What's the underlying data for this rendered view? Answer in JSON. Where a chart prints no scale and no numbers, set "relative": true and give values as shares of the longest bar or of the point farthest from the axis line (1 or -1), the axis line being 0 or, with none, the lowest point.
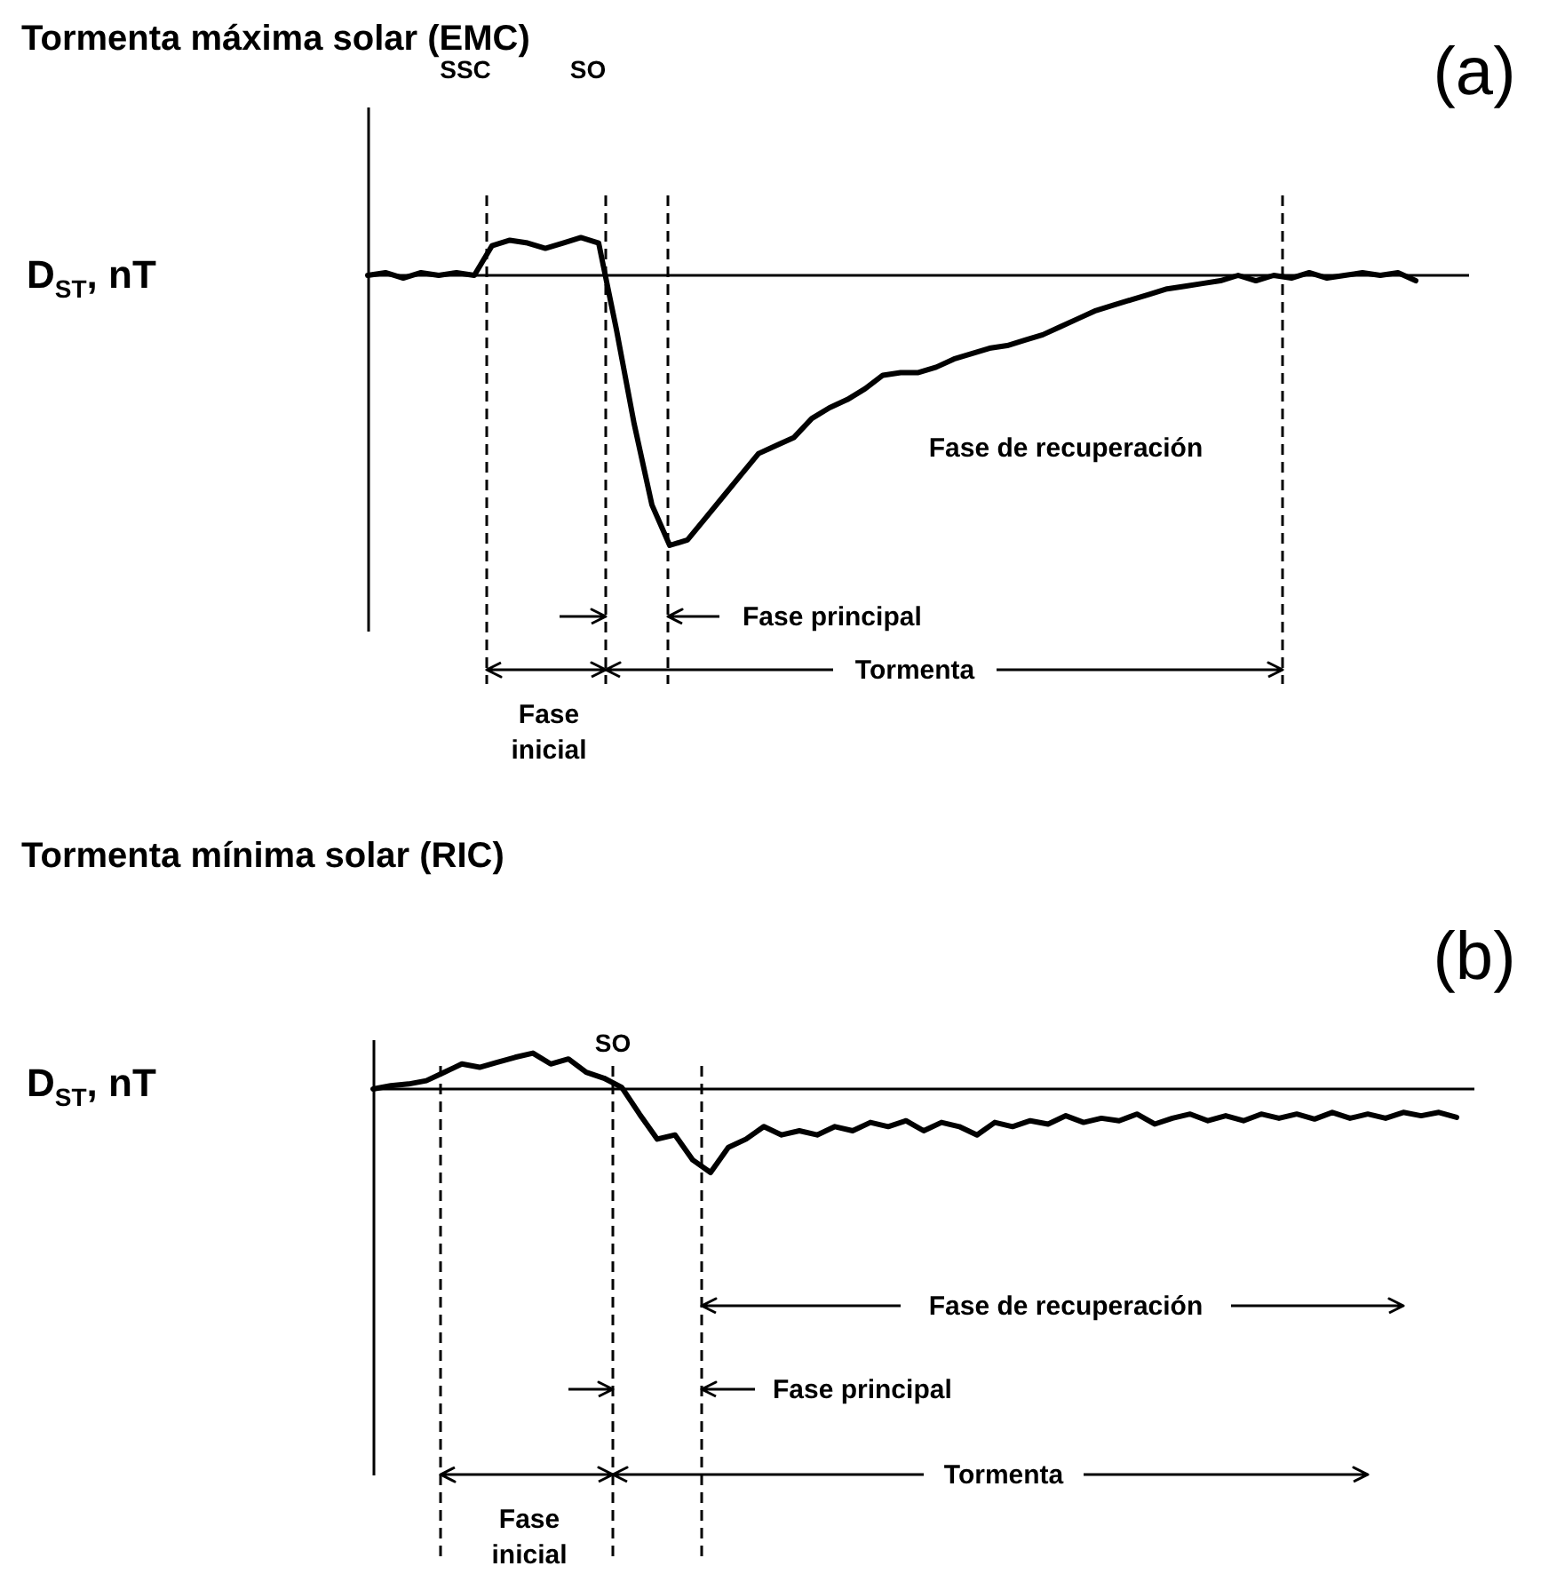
{
  "chart_data": [
    {
      "type": "line",
      "title": "Tormenta máxima solar (EMC)",
      "ylabel": "D$_{ST}$, nT",
      "relative": true,
      "categories": [
        null,
        null,
        null,
        null,
        null,
        null,
        null,
        null,
        null,
        null,
        null,
        null,
        null,
        null,
        null,
        null,
        null,
        null,
        null,
        null,
        null,
        null,
        null,
        null,
        null,
        null,
        null,
        null,
        null,
        null,
        null,
        null,
        null,
        null,
        null,
        null,
        null,
        null,
        null,
        null,
        null,
        null,
        null,
        null,
        null,
        null,
        null,
        null,
        null,
        null,
        null,
        null,
        null,
        null,
        null,
        null,
        null,
        null,
        null,
        null
      ],
      "series": [
        {
          "color": "#000000",
          "values": [
            0,
            0.01,
            -0.01,
            0.01,
            0,
            0.01,
            0,
            0.11,
            0.13,
            0.12,
            0.1,
            0.12,
            0.14,
            0.12,
            -0.2,
            -0.55,
            -0.85,
            -1.0,
            -0.98,
            -0.9,
            -0.82,
            -0.74,
            -0.66,
            -0.63,
            -0.6,
            -0.53,
            -0.49,
            -0.46,
            -0.42,
            -0.37,
            -0.36,
            -0.36,
            -0.34,
            -0.31,
            -0.29,
            -0.27,
            -0.26,
            -0.24,
            -0.22,
            -0.19,
            -0.16,
            -0.13,
            -0.11,
            -0.09,
            -0.07,
            -0.05,
            -0.04,
            -0.03,
            -0.02,
            0,
            -0.02,
            0,
            -0.01,
            0.01,
            -0.01,
            0,
            0.01,
            0,
            0.01,
            -0.02
          ]
        }
      ],
      "annotations": [
        "(a)",
        "SSC",
        "SO",
        "Fase de recuperación",
        "Fase principal",
        "Tormenta",
        "Fase inicial"
      ]
    },
    {
      "type": "line",
      "title": "Tormenta mínima solar (RIC)",
      "ylabel": "D$_{ST}$, nT",
      "relative": true,
      "categories": [
        null,
        null,
        null,
        null,
        null,
        null,
        null,
        null,
        null,
        null,
        null,
        null,
        null,
        null,
        null,
        null,
        null,
        null,
        null,
        null,
        null,
        null,
        null,
        null,
        null,
        null,
        null,
        null,
        null,
        null,
        null,
        null,
        null,
        null,
        null,
        null,
        null,
        null,
        null,
        null,
        null,
        null,
        null,
        null,
        null,
        null,
        null,
        null,
        null,
        null,
        null,
        null,
        null,
        null,
        null,
        null,
        null,
        null,
        null,
        null,
        null,
        null
      ],
      "series": [
        {
          "color": "#000000",
          "values": [
            0,
            0.04,
            0.06,
            0.1,
            0.2,
            0.3,
            0.26,
            0.32,
            0.38,
            0.43,
            0.3,
            0.36,
            0.2,
            0.13,
            0.02,
            -0.3,
            -0.6,
            -0.55,
            -0.85,
            -1.0,
            -0.7,
            -0.6,
            -0.45,
            -0.55,
            -0.5,
            -0.55,
            -0.45,
            -0.5,
            -0.4,
            -0.45,
            -0.38,
            -0.5,
            -0.4,
            -0.45,
            -0.55,
            -0.4,
            -0.45,
            -0.38,
            -0.42,
            -0.32,
            -0.4,
            -0.35,
            -0.38,
            -0.3,
            -0.42,
            -0.35,
            -0.3,
            -0.38,
            -0.32,
            -0.38,
            -0.3,
            -0.35,
            -0.3,
            -0.36,
            -0.28,
            -0.35,
            -0.3,
            -0.35,
            -0.28,
            -0.32,
            -0.28,
            -0.34
          ]
        }
      ],
      "annotations": [
        "(b)",
        "SO",
        "Fase de recuperación",
        "Fase principal",
        "Tormenta",
        "Fase inicial"
      ]
    }
  ]
}
